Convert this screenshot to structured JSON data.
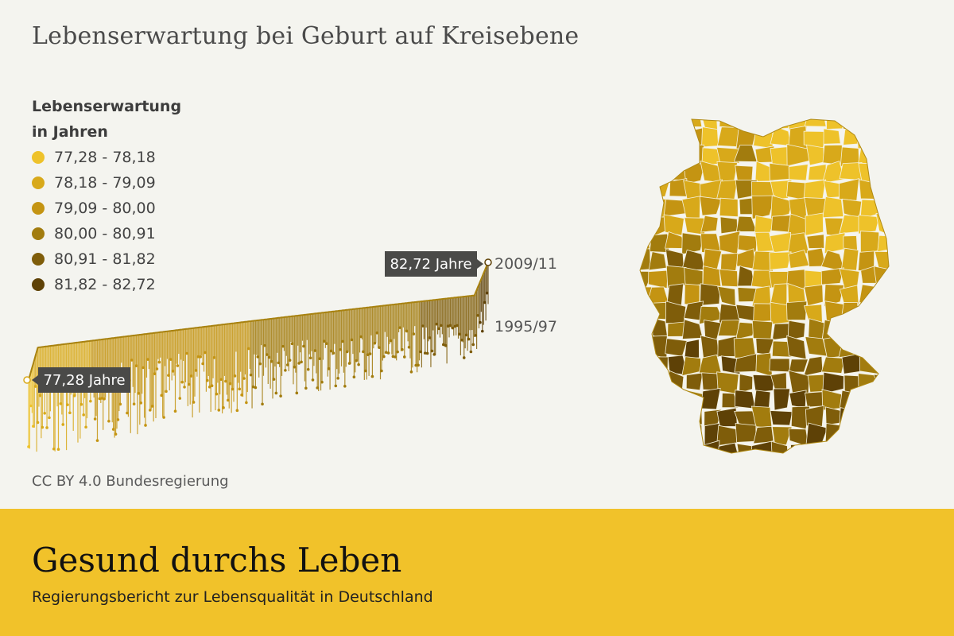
{
  "title": "Lebenserwartung bei Geburt auf Kreisebene",
  "legend": {
    "title_line1": "Lebenserwartung",
    "title_line2": "in Jahren",
    "items": [
      {
        "label": "77,28 - 78,18",
        "color": "#eec22a"
      },
      {
        "label": "78,18 - 79,09",
        "color": "#d8a91a"
      },
      {
        "label": "79,09 - 80,00",
        "color": "#c49412"
      },
      {
        "label": "80,00 - 80,91",
        "color": "#a27c0e"
      },
      {
        "label": "80,91 - 81,82",
        "color": "#7f5d0a"
      },
      {
        "label": "81,82 - 82,72",
        "color": "#5e4106"
      }
    ]
  },
  "chart_data": {
    "type": "line",
    "description_labels": {
      "max_label": "82,72 Jahre",
      "min_label": "77,28 Jahre"
    },
    "series": [
      {
        "name": "2009/11",
        "min": 77.28,
        "max": 82.72
      },
      {
        "name": "1995/97"
      }
    ],
    "ylim": [
      72.0,
      83.0
    ],
    "district_count": 402
  },
  "credit": "CC BY 4.0 Bundesregierung",
  "footer": {
    "title": "Gesund durchs Leben",
    "subtitle": "Regierungsbericht zur Lebensqualität in Deutschland",
    "color": "#f1c22a"
  }
}
